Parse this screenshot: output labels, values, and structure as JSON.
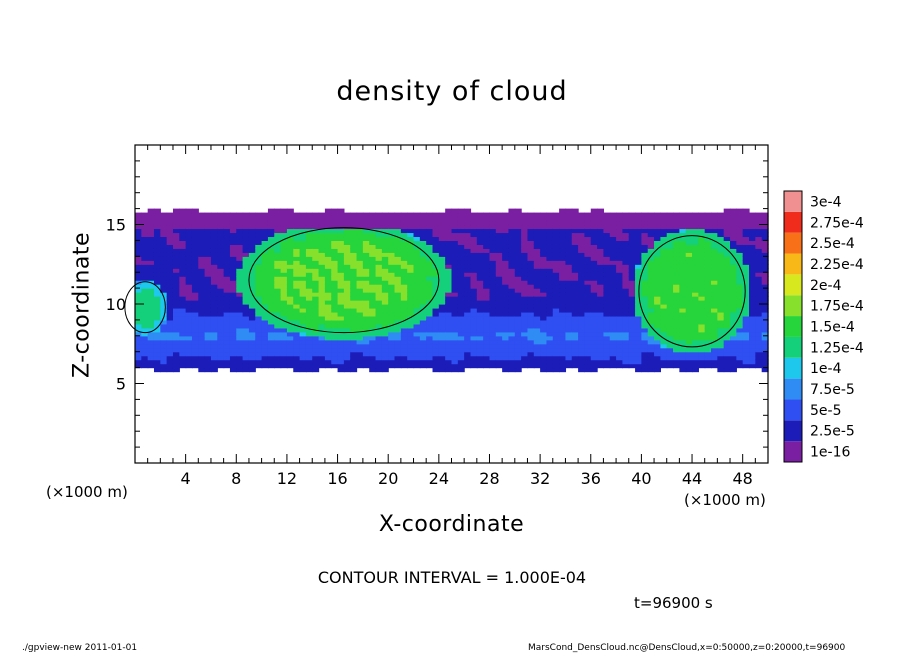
{
  "chart_data": {
    "type": "heatmap",
    "title": "density of cloud",
    "xlabel": "X-coordinate",
    "ylabel": "Z-coordinate",
    "x_unit_label": "(×1000 m)",
    "xlim": [
      0,
      50
    ],
    "ylim": [
      0,
      20
    ],
    "xticks": [
      4,
      8,
      12,
      16,
      20,
      24,
      28,
      32,
      36,
      40,
      44,
      48
    ],
    "yticks": [
      5,
      10,
      15
    ],
    "grid": false,
    "colorbar": {
      "labels": [
        "1e-16",
        "2.5e-5",
        "5e-5",
        "7.5e-5",
        "1e-4",
        "1.25e-4",
        "1.5e-4",
        "1.75e-4",
        "2e-4",
        "2.25e-4",
        "2.5e-4",
        "2.75e-4",
        "3e-4"
      ],
      "colors": [
        "#7a1fa2",
        "#1c1cb8",
        "#2f4ff2",
        "#2f8cf4",
        "#1ec8ec",
        "#14d07a",
        "#26d43c",
        "#86e02c",
        "#d8e81e",
        "#f8b818",
        "#f87018",
        "#f02c1c",
        "#f09090"
      ]
    },
    "cloud_region": {
      "x_range": [
        0,
        50
      ],
      "z_range": [
        5.5,
        16.3
      ]
    },
    "high_density_cells": [
      {
        "x_center": 16.5,
        "z_center": 11.5,
        "x_half_width": 7.5,
        "z_half_height": 3.3,
        "peak": 0.000175
      },
      {
        "x_center": 44.0,
        "z_center": 10.8,
        "x_half_width": 4.2,
        "z_half_height": 3.5,
        "peak": 0.00017
      },
      {
        "x_center": 0.8,
        "z_center": 9.8,
        "x_half_width": 1.6,
        "z_half_height": 1.6,
        "peak": 0.00013
      }
    ],
    "contour_interval": "1.000E-04"
  },
  "annotations": {
    "contour_text": "CONTOUR INTERVAL = 1.000E-04",
    "time_text": "t=96900 s",
    "footer_left": "./gpview-new  2011-01-01",
    "footer_right": "MarsCond_DensCloud.nc@DensCloud,x=0:50000,z=0:20000,t=96900"
  }
}
